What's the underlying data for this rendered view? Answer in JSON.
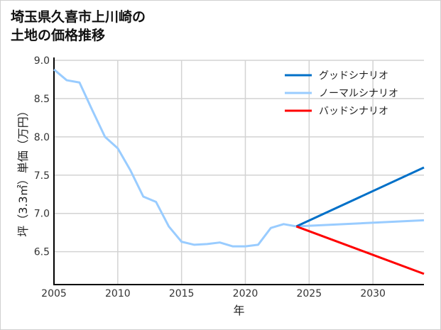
{
  "chart_data": {
    "type": "line",
    "title_lines": [
      "埼玉県久喜市上川崎の",
      "土地の価格推移"
    ],
    "xlabel": "年",
    "ylabel": "坪（3.3㎡）単価（万円）",
    "xlim": [
      2005,
      2034
    ],
    "ylim": [
      6.07,
      9.0
    ],
    "xticks": [
      "2005",
      "2010",
      "2015",
      "2020",
      "2025",
      "2030"
    ],
    "yticks": [
      "6.5",
      "7.0",
      "7.5",
      "8.0",
      "8.5",
      "9.0"
    ],
    "grid": true,
    "legend_position": "top-right",
    "series": [
      {
        "name": "グッドシナリオ",
        "color": "#0070c8",
        "x": [
          2024,
          2034
        ],
        "y": [
          6.83,
          7.6
        ]
      },
      {
        "name": "ノーマルシナリオ",
        "color": "#99ccff",
        "x": [
          2005,
          2006,
          2007,
          2008,
          2009,
          2010,
          2011,
          2012,
          2013,
          2014,
          2015,
          2016,
          2017,
          2018,
          2019,
          2020,
          2021,
          2022,
          2023,
          2024,
          2034
        ],
        "y": [
          8.88,
          8.74,
          8.71,
          8.35,
          8.0,
          7.85,
          7.56,
          7.22,
          7.15,
          6.83,
          6.63,
          6.59,
          6.6,
          6.62,
          6.57,
          6.57,
          6.59,
          6.81,
          6.86,
          6.83,
          6.91
        ]
      },
      {
        "name": "バッドシナリオ",
        "color": "#ff0000",
        "x": [
          2024,
          2034
        ],
        "y": [
          6.83,
          6.21
        ]
      }
    ]
  }
}
